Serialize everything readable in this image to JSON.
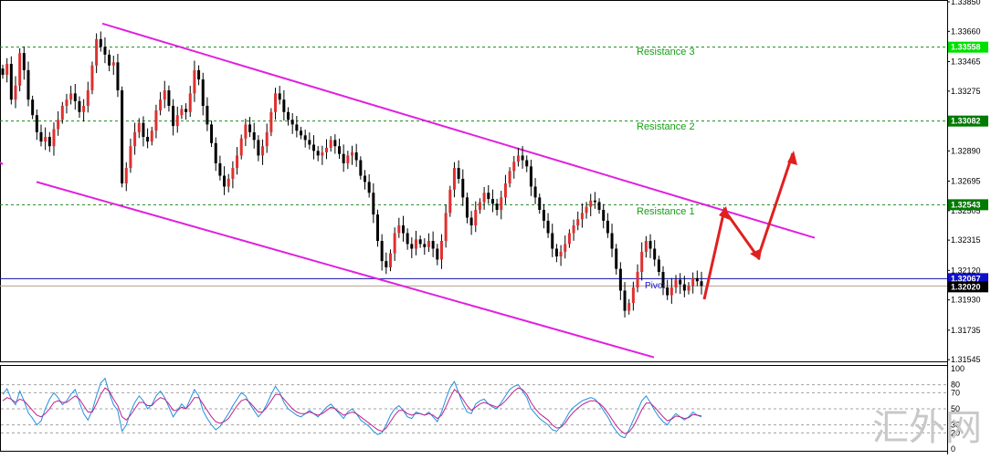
{
  "chart_data": [
    {
      "type": "candlestick",
      "ylim": [
        1.3154,
        1.3385
      ],
      "y_ticks": [
        "1.33850",
        "1.33660",
        "1.33465",
        "1.33275",
        "1.32890",
        "1.32695",
        "1.32505",
        "1.32315",
        "1.32120",
        "1.31930",
        "1.31735",
        "1.31545"
      ],
      "resistance_levels": [
        {
          "name": "Resistance 3",
          "value": 1.33558,
          "tag": "1.33558",
          "color": "#00e000"
        },
        {
          "name": "Resistance 2",
          "value": 1.33082,
          "tag": "1.33082",
          "color": "#007a00"
        },
        {
          "name": "Resistance 1",
          "value": 1.32543,
          "tag": "1.32543",
          "color": "#007a00"
        }
      ],
      "current_price": {
        "value": 1.32067,
        "tag": "1.32067",
        "color": "#1010cc"
      },
      "pivot": {
        "label": "Pivot",
        "value": 1.3202,
        "tag": "1.32020",
        "color": "#000000"
      },
      "channel": {
        "color": "#e020e0",
        "upper": [
          [
            0.0,
            1.3371
          ],
          [
            1.0,
            1.3233
          ]
        ],
        "lower": [
          [
            0.0,
            1.3269
          ],
          [
            1.0,
            1.3156
          ]
        ]
      },
      "close": [
        1.3338,
        1.3345,
        1.3322,
        1.3331,
        1.3352,
        1.3341,
        1.3322,
        1.3312,
        1.3301,
        1.3295,
        1.3298,
        1.3292,
        1.3303,
        1.3309,
        1.3318,
        1.3322,
        1.3326,
        1.3321,
        1.3314,
        1.3318,
        1.3328,
        1.3344,
        1.3361,
        1.3356,
        1.3351,
        1.3344,
        1.3346,
        1.3328,
        1.3268,
        1.3278,
        1.3292,
        1.3301,
        1.3307,
        1.3298,
        1.3295,
        1.3302,
        1.3315,
        1.3322,
        1.3328,
        1.3318,
        1.3305,
        1.3312,
        1.3316,
        1.3314,
        1.3326,
        1.3341,
        1.3335,
        1.3318,
        1.3306,
        1.3294,
        1.3281,
        1.3273,
        1.3266,
        1.3271,
        1.3278,
        1.3286,
        1.3297,
        1.3306,
        1.3301,
        1.3296,
        1.3286,
        1.3292,
        1.3301,
        1.3314,
        1.3326,
        1.3322,
        1.3314,
        1.3309,
        1.3306,
        1.3302,
        1.3299,
        1.3296,
        1.3293,
        1.3289,
        1.3286,
        1.3288,
        1.3291,
        1.3296,
        1.3292,
        1.3287,
        1.3281,
        1.3286,
        1.3288,
        1.3283,
        1.3273,
        1.3269,
        1.3262,
        1.3248,
        1.3231,
        1.3218,
        1.3214,
        1.3223,
        1.3236,
        1.3241,
        1.3236,
        1.3229,
        1.3226,
        1.3232,
        1.3229,
        1.3227,
        1.3231,
        1.3226,
        1.3219,
        1.3231,
        1.3249,
        1.3264,
        1.3278,
        1.3271,
        1.3259,
        1.3246,
        1.3241,
        1.3251,
        1.3256,
        1.3262,
        1.3258,
        1.3255,
        1.3251,
        1.3259,
        1.3268,
        1.3276,
        1.3282,
        1.3286,
        1.3283,
        1.3279,
        1.3266,
        1.3259,
        1.3251,
        1.3244,
        1.3236,
        1.3226,
        1.3221,
        1.3224,
        1.3229,
        1.3236,
        1.3241,
        1.3245,
        1.3249,
        1.3253,
        1.3257,
        1.3256,
        1.3251,
        1.3244,
        1.3236,
        1.3226,
        1.3213,
        1.3199,
        1.3186,
        1.3191,
        1.3201,
        1.3211,
        1.3224,
        1.3231,
        1.3226,
        1.3219,
        1.3211,
        1.3201,
        1.3196,
        1.3201,
        1.3206,
        1.3203,
        1.3199,
        1.3202,
        1.3207,
        1.3205,
        1.3202
      ],
      "rsi": {
        "levels": [
          100,
          80,
          70,
          50,
          30,
          20,
          0
        ],
        "ticks": [
          "100",
          "80",
          "70",
          "50",
          "30",
          "20",
          "0"
        ],
        "series": [
          {
            "color": "#2090e0",
            "values": [
              68,
              75,
              62,
              55,
              72,
              60,
              45,
              38,
              30,
              35,
              50,
              62,
              70,
              64,
              55,
              60,
              68,
              74,
              58,
              44,
              36,
              48,
              66,
              82,
              88,
              70,
              55,
              48,
              22,
              30,
              46,
              58,
              66,
              60,
              50,
              55,
              66,
              72,
              64,
              52,
              40,
              48,
              56,
              50,
              62,
              74,
              66,
              48,
              38,
              30,
              24,
              28,
              36,
              44,
              54,
              62,
              70,
              66,
              56,
              48,
              40,
              46,
              56,
              68,
              78,
              70,
              58,
              50,
              46,
              42,
              40,
              44,
              48,
              44,
              40,
              46,
              52,
              56,
              50,
              44,
              38,
              46,
              50,
              44,
              36,
              32,
              28,
              22,
              18,
              20,
              30,
              42,
              50,
              54,
              48,
              40,
              38,
              46,
              44,
              42,
              46,
              40,
              34,
              46,
              62,
              76,
              84,
              70,
              56,
              46,
              44,
              56,
              60,
              62,
              56,
              52,
              50,
              58,
              66,
              74,
              78,
              80,
              72,
              64,
              50,
              44,
              38,
              34,
              30,
              24,
              22,
              28,
              36,
              46,
              52,
              56,
              60,
              62,
              64,
              62,
              56,
              48,
              40,
              30,
              22,
              16,
              14,
              24,
              36,
              48,
              60,
              66,
              58,
              48,
              40,
              34,
              30,
              38,
              44,
              40,
              36,
              40,
              46,
              42,
              40
            ]
          },
          {
            "color": "#c0208a",
            "values": [
              60,
              64,
              62,
              58,
              62,
              60,
              54,
              48,
              42,
              40,
              44,
              50,
              58,
              60,
              58,
              58,
              62,
              66,
              62,
              54,
              46,
              46,
              56,
              68,
              76,
              72,
              62,
              54,
              40,
              36,
              42,
              50,
              58,
              58,
              54,
              54,
              60,
              64,
              62,
              56,
              48,
              48,
              52,
              50,
              56,
              64,
              64,
              56,
              48,
              40,
              34,
              32,
              34,
              38,
              46,
              54,
              60,
              62,
              58,
              52,
              46,
              46,
              52,
              60,
              68,
              68,
              62,
              56,
              50,
              46,
              44,
              44,
              46,
              44,
              42,
              44,
              48,
              52,
              50,
              46,
              42,
              44,
              46,
              44,
              40,
              36,
              32,
              28,
              24,
              22,
              26,
              34,
              42,
              48,
              48,
              44,
              42,
              44,
              44,
              42,
              44,
              42,
              38,
              42,
              52,
              64,
              74,
              70,
              62,
              54,
              48,
              52,
              56,
              58,
              56,
              54,
              52,
              55,
              60,
              66,
              72,
              76,
              74,
              68,
              58,
              50,
              44,
              40,
              36,
              30,
              26,
              27,
              32,
              40,
              46,
              51,
              55,
              58,
              60,
              60,
              57,
              52,
              45,
              37,
              29,
              23,
              19,
              21,
              28,
              38,
              49,
              57,
              57,
              52,
              46,
              40,
              35,
              37,
              41,
              40,
              38,
              39,
              43,
              42,
              41
            ]
          }
        ]
      },
      "arrows": {
        "color": "#e02020"
      }
    }
  ],
  "labels": {
    "resistance_3": "Resistance 3",
    "resistance_2": "Resistance 2",
    "resistance_1": "Resistance 1",
    "pivot": "Pivot"
  },
  "watermark": "汇外网"
}
